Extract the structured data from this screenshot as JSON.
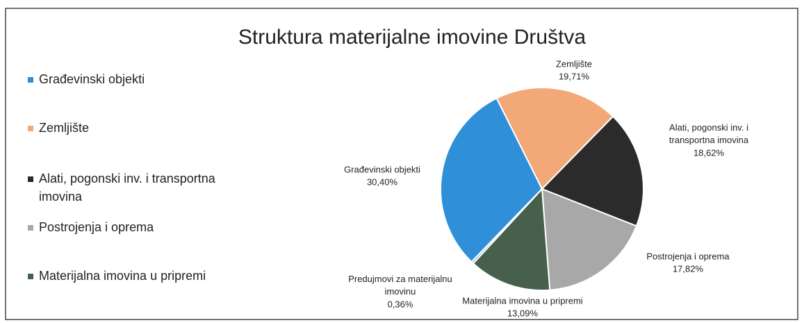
{
  "chart_data": {
    "type": "pie",
    "title": "Struktura materijalne imovine Društva",
    "categories": [
      "Građevinski objekti",
      "Zemljište",
      "Alati, pogonski inv. i transportna imovina",
      "Postrojenja i oprema",
      "Materijalna imovina u pripremi",
      "Predujmovi za materijalnu imovinu"
    ],
    "values": [
      30.4,
      19.71,
      18.62,
      17.82,
      13.09,
      0.36
    ],
    "value_labels": [
      "30,40%",
      "19,71%",
      "18,62%",
      "17,82%",
      "13,09%",
      "0,36%"
    ],
    "colors": [
      "#2f8fd8",
      "#f3a878",
      "#2b2b2b",
      "#a8a8a8",
      "#46604c",
      "#7fb0d8"
    ],
    "legend": [
      "Građevinski objekti",
      "Zemljište",
      "Alati, pogonski inv. i transportna imovina",
      "Postrojenja i oprema",
      "Materijalna imovina u pripremi"
    ],
    "legend_position": "left"
  }
}
